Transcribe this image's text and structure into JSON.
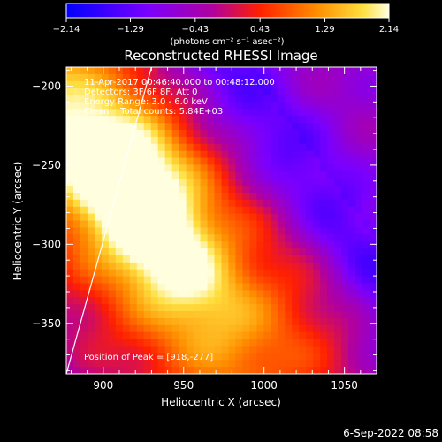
{
  "chart_data": {
    "type": "heatmap",
    "title": "Reconstructed RHESSI Image",
    "xlabel": "Heliocentric X (arcsec)",
    "ylabel": "Heliocentric Y (arcsec)",
    "xlim": [
      877,
      1070
    ],
    "ylim": [
      -382,
      -188
    ],
    "xticks": [
      {
        "v": 900,
        "label": "900"
      },
      {
        "v": 950,
        "label": "950"
      },
      {
        "v": 1000,
        "label": "1000"
      },
      {
        "v": 1050,
        "label": "1050"
      }
    ],
    "yticks": [
      {
        "v": -200,
        "label": "−200"
      },
      {
        "v": -250,
        "label": "−250"
      },
      {
        "v": -300,
        "label": "−300"
      },
      {
        "v": -350,
        "label": "−350"
      }
    ],
    "colorbar": {
      "range": [
        -2.14,
        2.14
      ],
      "ticks": [
        {
          "v": -2.14,
          "label": "−2.14"
        },
        {
          "v": -1.29,
          "label": "−1.29"
        },
        {
          "v": -0.43,
          "label": "−0.43"
        },
        {
          "v": 0.43,
          "label": "0.43"
        },
        {
          "v": 1.29,
          "label": "1.29"
        },
        {
          "v": 2.14,
          "label": "2.14"
        }
      ],
      "unit_label": "(photons cm⁻² s⁻¹ asec⁻²)"
    },
    "annotations": [
      "11-Apr-2017 00:46:40.000 to 00:48:12.000",
      "Detectors: 3F 6F 8F, Att 0",
      "Energy Range: 3.0 - 6.0 keV",
      "Clean    Total counts: 5.84E+03"
    ],
    "peak_label": "Position of Peak = [918,-277]",
    "peak": [
      918,
      -277
    ],
    "limb_line": [
      [
        877,
        -382
      ],
      [
        930,
        -188
      ]
    ],
    "footer_date": "6-Sep-2022 08:58"
  }
}
